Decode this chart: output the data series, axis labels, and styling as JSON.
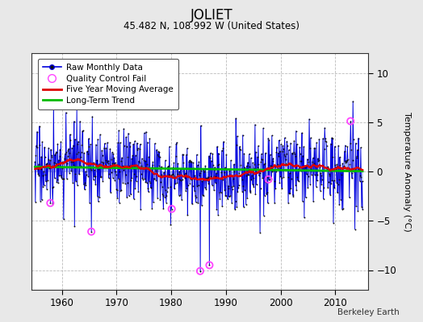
{
  "title": "JOLIET",
  "subtitle": "45.482 N, 108.992 W (United States)",
  "ylabel": "Temperature Anomaly (°C)",
  "credit": "Berkeley Earth",
  "xlim": [
    1954.5,
    2016.0
  ],
  "ylim": [
    -12.0,
    12.0
  ],
  "ytick_vals": [
    -10,
    -5,
    0,
    5,
    10
  ],
  "xtick_vals": [
    1960,
    1970,
    1980,
    1990,
    2000,
    2010
  ],
  "bg_color": "#e8e8e8",
  "plot_bg_color": "#ffffff",
  "bar_color": "#5577ee",
  "line_color": "#0000dd",
  "dot_color": "#111111",
  "ma_color": "#dd0000",
  "trend_color": "#00bb00",
  "qc_color": "#ff44ff",
  "seed": 17,
  "start_year": 1955.083,
  "n_months": 720,
  "qc_years": [
    1957.9,
    1965.4,
    1980.1,
    1985.3,
    1987.0,
    1997.8,
    2012.8
  ],
  "qc_values": [
    -3.2,
    -6.1,
    -3.8,
    -10.1,
    -9.5,
    -0.8,
    5.1
  ]
}
